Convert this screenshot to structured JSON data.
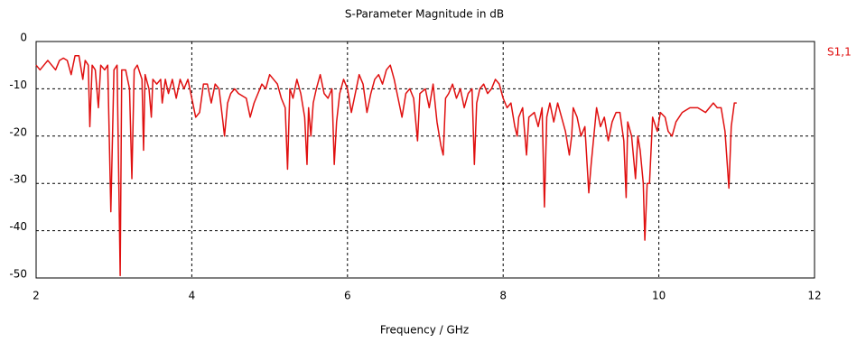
{
  "chart_data": {
    "type": "line",
    "title": "S-Parameter Magnitude in dB",
    "xlabel": "Frequency / GHz",
    "xlim": [
      2,
      12
    ],
    "xticks": [
      2,
      4,
      6,
      8,
      10,
      12
    ],
    "ylim": [
      -50,
      0
    ],
    "yticks": [
      0,
      -10,
      -20,
      -30,
      -40,
      -50
    ],
    "grid": true,
    "legend": "top-right",
    "x": [
      2.0,
      2.05,
      2.1,
      2.15,
      2.2,
      2.25,
      2.3,
      2.35,
      2.4,
      2.45,
      2.5,
      2.55,
      2.6,
      2.63,
      2.67,
      2.69,
      2.72,
      2.76,
      2.8,
      2.83,
      2.88,
      2.92,
      2.96,
      3.0,
      3.04,
      3.08,
      3.1,
      3.15,
      3.2,
      3.23,
      3.26,
      3.3,
      3.36,
      3.38,
      3.4,
      3.45,
      3.48,
      3.5,
      3.55,
      3.6,
      3.62,
      3.66,
      3.7,
      3.75,
      3.8,
      3.85,
      3.9,
      3.95,
      4.0,
      4.05,
      4.1,
      4.15,
      4.2,
      4.25,
      4.3,
      4.35,
      4.4,
      4.42,
      4.46,
      4.5,
      4.55,
      4.6,
      4.7,
      4.75,
      4.8,
      4.85,
      4.9,
      4.95,
      5.0,
      5.05,
      5.1,
      5.15,
      5.2,
      5.23,
      5.26,
      5.3,
      5.35,
      5.4,
      5.45,
      5.48,
      5.5,
      5.53,
      5.56,
      5.6,
      5.65,
      5.7,
      5.75,
      5.8,
      5.83,
      5.86,
      5.9,
      5.95,
      6.0,
      6.05,
      6.1,
      6.15,
      6.2,
      6.25,
      6.3,
      6.35,
      6.4,
      6.45,
      6.5,
      6.55,
      6.6,
      6.65,
      6.7,
      6.75,
      6.8,
      6.85,
      6.9,
      6.93,
      7.0,
      7.05,
      7.1,
      7.15,
      7.2,
      7.23,
      7.26,
      7.3,
      7.35,
      7.4,
      7.45,
      7.5,
      7.55,
      7.6,
      7.63,
      7.66,
      7.7,
      7.75,
      7.8,
      7.85,
      7.9,
      7.95,
      8.0,
      8.05,
      8.1,
      8.15,
      8.18,
      8.2,
      8.25,
      8.3,
      8.33,
      8.4,
      8.45,
      8.5,
      8.53,
      8.56,
      8.6,
      8.65,
      8.7,
      8.75,
      8.8,
      8.85,
      8.88,
      8.9,
      8.95,
      9.0,
      9.05,
      9.1,
      9.13,
      9.2,
      9.25,
      9.3,
      9.35,
      9.4,
      9.45,
      9.5,
      9.55,
      9.58,
      9.6,
      9.65,
      9.7,
      9.73,
      9.76,
      9.8,
      9.82,
      9.85,
      9.88,
      9.92,
      9.98,
      10.02,
      10.08,
      10.12,
      10.17,
      10.22,
      10.3,
      10.4,
      10.5,
      10.6,
      10.7,
      10.75,
      10.8,
      10.85,
      10.9,
      10.93,
      10.97,
      11.0
    ],
    "series": [
      {
        "name": "S1,1",
        "color": "#e01010",
        "values": [
          -5,
          -6,
          -5,
          -4,
          -5,
          -6,
          -4,
          -3.5,
          -4,
          -7,
          -3,
          -3,
          -8,
          -4,
          -5,
          -18,
          -5,
          -6,
          -14,
          -5,
          -6,
          -5,
          -36,
          -6,
          -5,
          -49.5,
          -6,
          -6,
          -10,
          -29,
          -6,
          -5,
          -8,
          -23,
          -7,
          -10,
          -16,
          -8,
          -9,
          -8,
          -13,
          -8,
          -11,
          -8,
          -12,
          -8,
          -10,
          -8,
          -12,
          -16,
          -15,
          -9,
          -9,
          -13,
          -9,
          -10,
          -17,
          -20,
          -13,
          -11,
          -10,
          -11,
          -12,
          -16,
          -13,
          -11,
          -9,
          -10,
          -7,
          -8,
          -9,
          -12,
          -14,
          -27,
          -10,
          -12,
          -8,
          -11,
          -16,
          -26,
          -14,
          -20,
          -13,
          -10,
          -7,
          -11,
          -12,
          -10,
          -26,
          -17,
          -11,
          -8,
          -10,
          -15,
          -11,
          -7,
          -9,
          -15,
          -11,
          -8,
          -7,
          -9,
          -6,
          -5,
          -8,
          -12,
          -16,
          -11,
          -10,
          -12,
          -21,
          -11,
          -10,
          -14,
          -9,
          -17,
          -22,
          -24,
          -12,
          -11,
          -9,
          -12,
          -10,
          -14,
          -11,
          -10,
          -26,
          -13,
          -10,
          -9,
          -11,
          -10,
          -8,
          -9,
          -12,
          -14,
          -13,
          -18,
          -20,
          -16,
          -14,
          -24,
          -16,
          -15,
          -18,
          -14,
          -35,
          -16,
          -13,
          -17,
          -13,
          -16,
          -19,
          -24,
          -20,
          -14,
          -16,
          -20,
          -18,
          -32,
          -26,
          -14,
          -18,
          -16,
          -21,
          -17,
          -15,
          -15,
          -21,
          -33,
          -17,
          -20,
          -29,
          -20,
          -23,
          -30,
          -42,
          -30,
          -30,
          -16,
          -19,
          -15,
          -16,
          -19,
          -20,
          -17,
          -15,
          -14,
          -14,
          -15,
          -13,
          -14,
          -14,
          -19,
          -31,
          -18,
          -13,
          -13
        ]
      }
    ]
  }
}
